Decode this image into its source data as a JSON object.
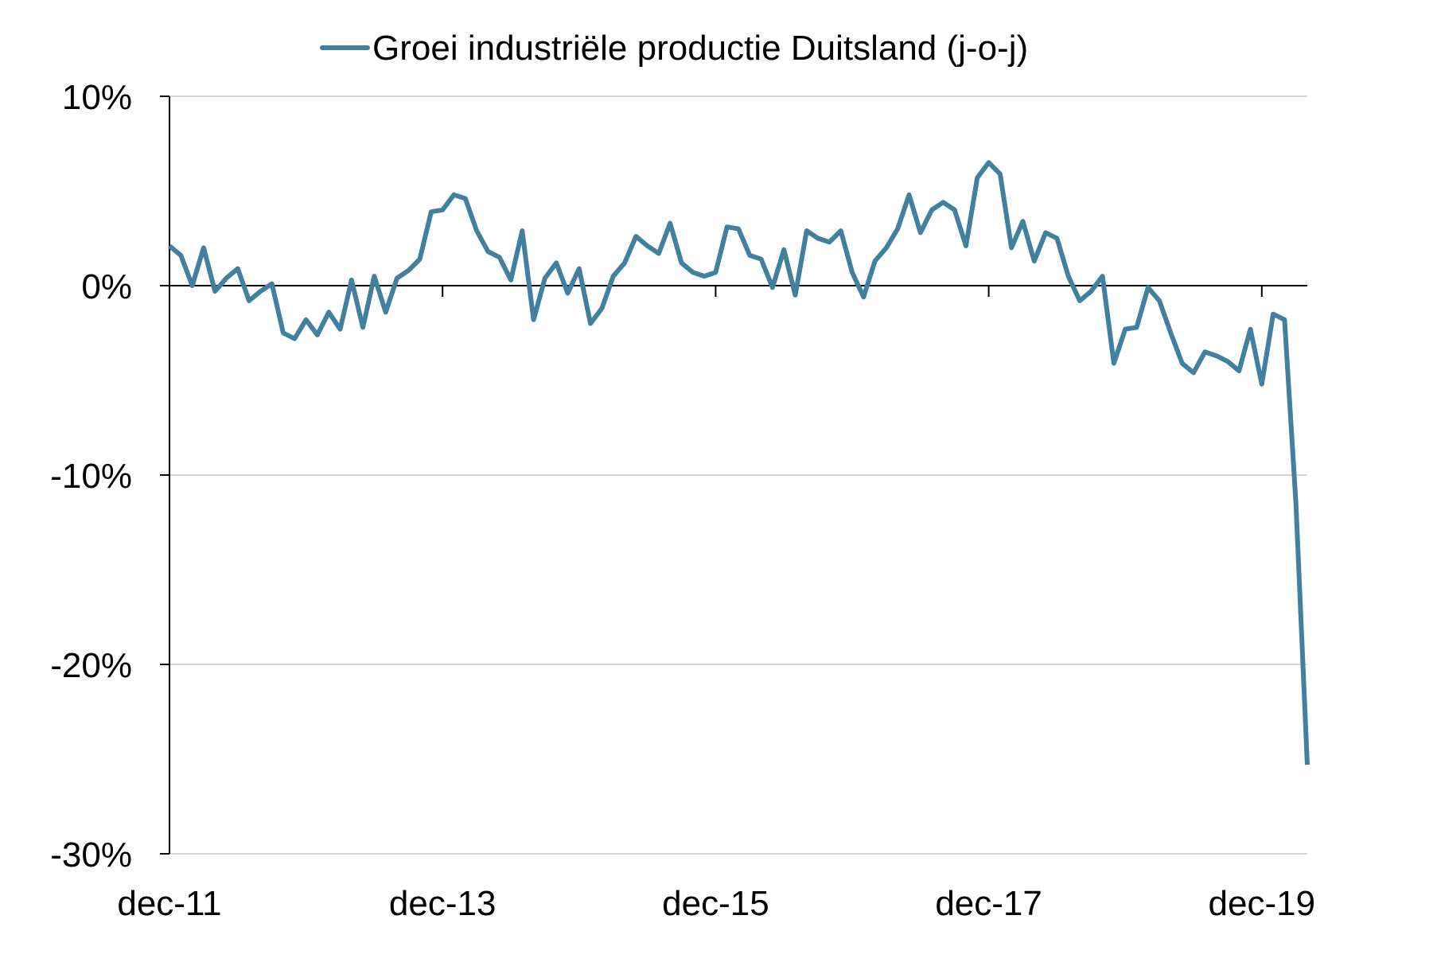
{
  "chart_data": {
    "type": "line",
    "title": "",
    "xlabel": "",
    "ylabel": "",
    "ylim": [
      -30,
      10
    ],
    "y_ticks": [
      10,
      0,
      -10,
      -20,
      -30
    ],
    "y_tick_labels": [
      "10%",
      "0%",
      "-10%",
      "-20%",
      "-30%"
    ],
    "x_tick_labels": [
      "dec-11",
      "dec-13",
      "dec-15",
      "dec-17",
      "dec-19"
    ],
    "x_range": [
      "2011-12",
      "2020-04"
    ],
    "grid": "horizontal",
    "legend_position": "top-center",
    "series": [
      {
        "name": "Groei industriële productie Duitsland (j-o-j)",
        "color": "#41809E",
        "x": [
          "2011-12",
          "2012-01",
          "2012-02",
          "2012-03",
          "2012-04",
          "2012-05",
          "2012-06",
          "2012-07",
          "2012-08",
          "2012-09",
          "2012-10",
          "2012-11",
          "2012-12",
          "2013-01",
          "2013-02",
          "2013-03",
          "2013-04",
          "2013-05",
          "2013-06",
          "2013-07",
          "2013-08",
          "2013-09",
          "2013-10",
          "2013-11",
          "2013-12",
          "2014-01",
          "2014-02",
          "2014-03",
          "2014-04",
          "2014-05",
          "2014-06",
          "2014-07",
          "2014-08",
          "2014-09",
          "2014-10",
          "2014-11",
          "2014-12",
          "2015-01",
          "2015-02",
          "2015-03",
          "2015-04",
          "2015-05",
          "2015-06",
          "2015-07",
          "2015-08",
          "2015-09",
          "2015-10",
          "2015-11",
          "2015-12",
          "2016-01",
          "2016-02",
          "2016-03",
          "2016-04",
          "2016-05",
          "2016-06",
          "2016-07",
          "2016-08",
          "2016-09",
          "2016-10",
          "2016-11",
          "2016-12",
          "2017-01",
          "2017-02",
          "2017-03",
          "2017-04",
          "2017-05",
          "2017-06",
          "2017-07",
          "2017-08",
          "2017-09",
          "2017-10",
          "2017-11",
          "2017-12",
          "2018-01",
          "2018-02",
          "2018-03",
          "2018-04",
          "2018-05",
          "2018-06",
          "2018-07",
          "2018-08",
          "2018-09",
          "2018-10",
          "2018-11",
          "2018-12",
          "2019-01",
          "2019-02",
          "2019-03",
          "2019-04",
          "2019-05",
          "2019-06",
          "2019-07",
          "2019-08",
          "2019-09",
          "2019-10",
          "2019-11",
          "2019-12",
          "2020-01",
          "2020-02",
          "2020-03",
          "2020-04"
        ],
        "values": [
          2.1,
          1.6,
          0.0,
          2.0,
          -0.3,
          0.4,
          0.9,
          -0.8,
          -0.3,
          0.1,
          -2.5,
          -2.8,
          -1.8,
          -2.6,
          -1.4,
          -2.3,
          0.3,
          -2.2,
          0.5,
          -1.4,
          0.4,
          0.8,
          1.4,
          3.9,
          4.0,
          4.8,
          4.6,
          2.9,
          1.8,
          1.5,
          0.3,
          2.9,
          -1.8,
          0.4,
          1.2,
          -0.4,
          0.9,
          -2.0,
          -1.2,
          0.5,
          1.2,
          2.6,
          2.1,
          1.7,
          3.3,
          1.2,
          0.7,
          0.5,
          0.7,
          3.1,
          3.0,
          1.6,
          1.4,
          -0.1,
          1.9,
          -0.5,
          2.9,
          2.5,
          2.3,
          2.9,
          0.7,
          -0.6,
          1.3,
          2.0,
          3.0,
          4.8,
          2.8,
          4.0,
          4.4,
          4.0,
          2.1,
          5.7,
          6.5,
          5.9,
          2.0,
          3.4,
          1.3,
          2.8,
          2.5,
          0.5,
          -0.8,
          -0.3,
          0.5,
          -4.1,
          -2.3,
          -2.2,
          -0.1,
          -0.8,
          -2.5,
          -4.1,
          -4.6,
          -3.5,
          -3.7,
          -4.0,
          -4.5,
          -2.3,
          -5.2,
          -1.5,
          -1.8,
          -11.5,
          -25.3
        ]
      }
    ]
  }
}
